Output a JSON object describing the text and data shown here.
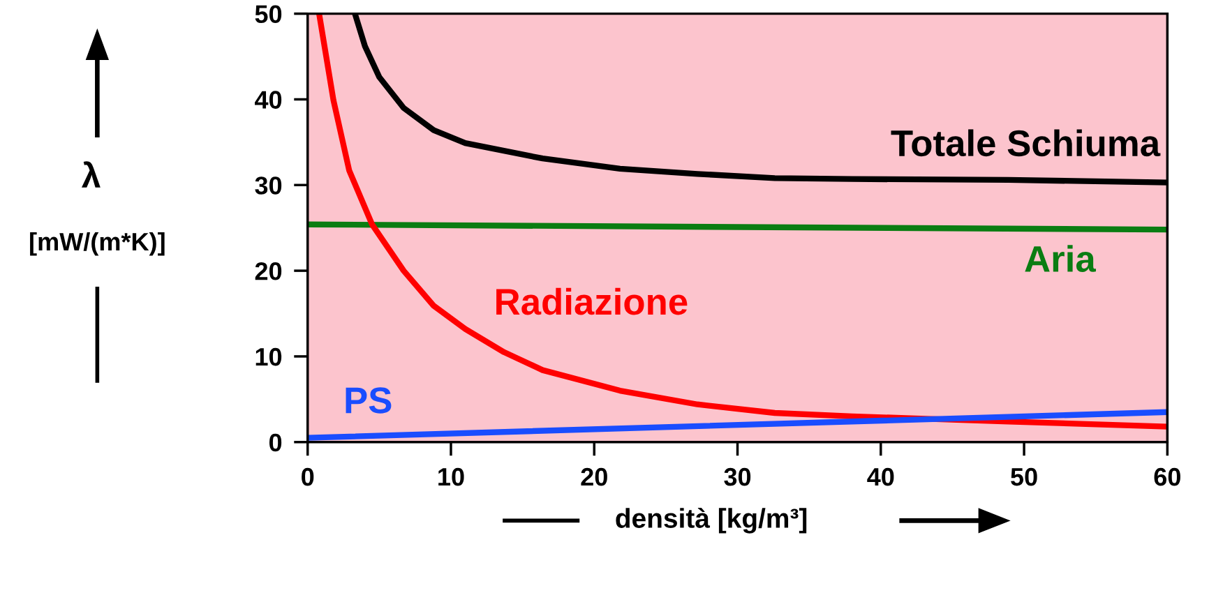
{
  "chart_data": {
    "type": "line",
    "xlabel": "densità [kg/m³]",
    "ylabel": "λ\n[mW/(m*K)]",
    "xlim": [
      0,
      60
    ],
    "ylim": [
      0,
      50
    ],
    "xticks": [
      0,
      10,
      20,
      30,
      40,
      50,
      60
    ],
    "yticks": [
      0,
      10,
      20,
      30,
      40,
      50
    ],
    "grid": false,
    "legend": false,
    "marker": "none",
    "line_style": "solid",
    "series": [
      {
        "name": "Totale Schiuma",
        "color": "#000000",
        "x": [
          3.3,
          4,
          5,
          6.7,
          8.8,
          11,
          16.4,
          21.8,
          27.2,
          32.6,
          38,
          48.9,
          60
        ],
        "values": [
          50,
          46.2,
          42.6,
          39,
          36.4,
          34.9,
          33.1,
          31.9,
          31.3,
          30.8,
          30.7,
          30.6,
          30.3
        ]
      },
      {
        "name": "Aria",
        "color": "#0a7d12",
        "x": [
          0,
          60
        ],
        "values": [
          25.4,
          24.8
        ]
      },
      {
        "name": "Radiazione",
        "color": "#ff0000",
        "x": [
          0.8,
          1.8,
          2.9,
          4.5,
          6.7,
          8.8,
          11,
          13.7,
          16.4,
          21.8,
          27.2,
          32.6,
          38,
          43.5,
          48.9,
          60
        ],
        "values": [
          50,
          39.9,
          31.7,
          25.4,
          20,
          15.9,
          13.2,
          10.5,
          8.4,
          6,
          4.4,
          3.4,
          3.0,
          2.7,
          2.4,
          1.8
        ]
      },
      {
        "name": "PS",
        "color": "#1a4dff",
        "x": [
          0,
          60
        ],
        "values": [
          0.5,
          3.5
        ]
      }
    ]
  }
}
